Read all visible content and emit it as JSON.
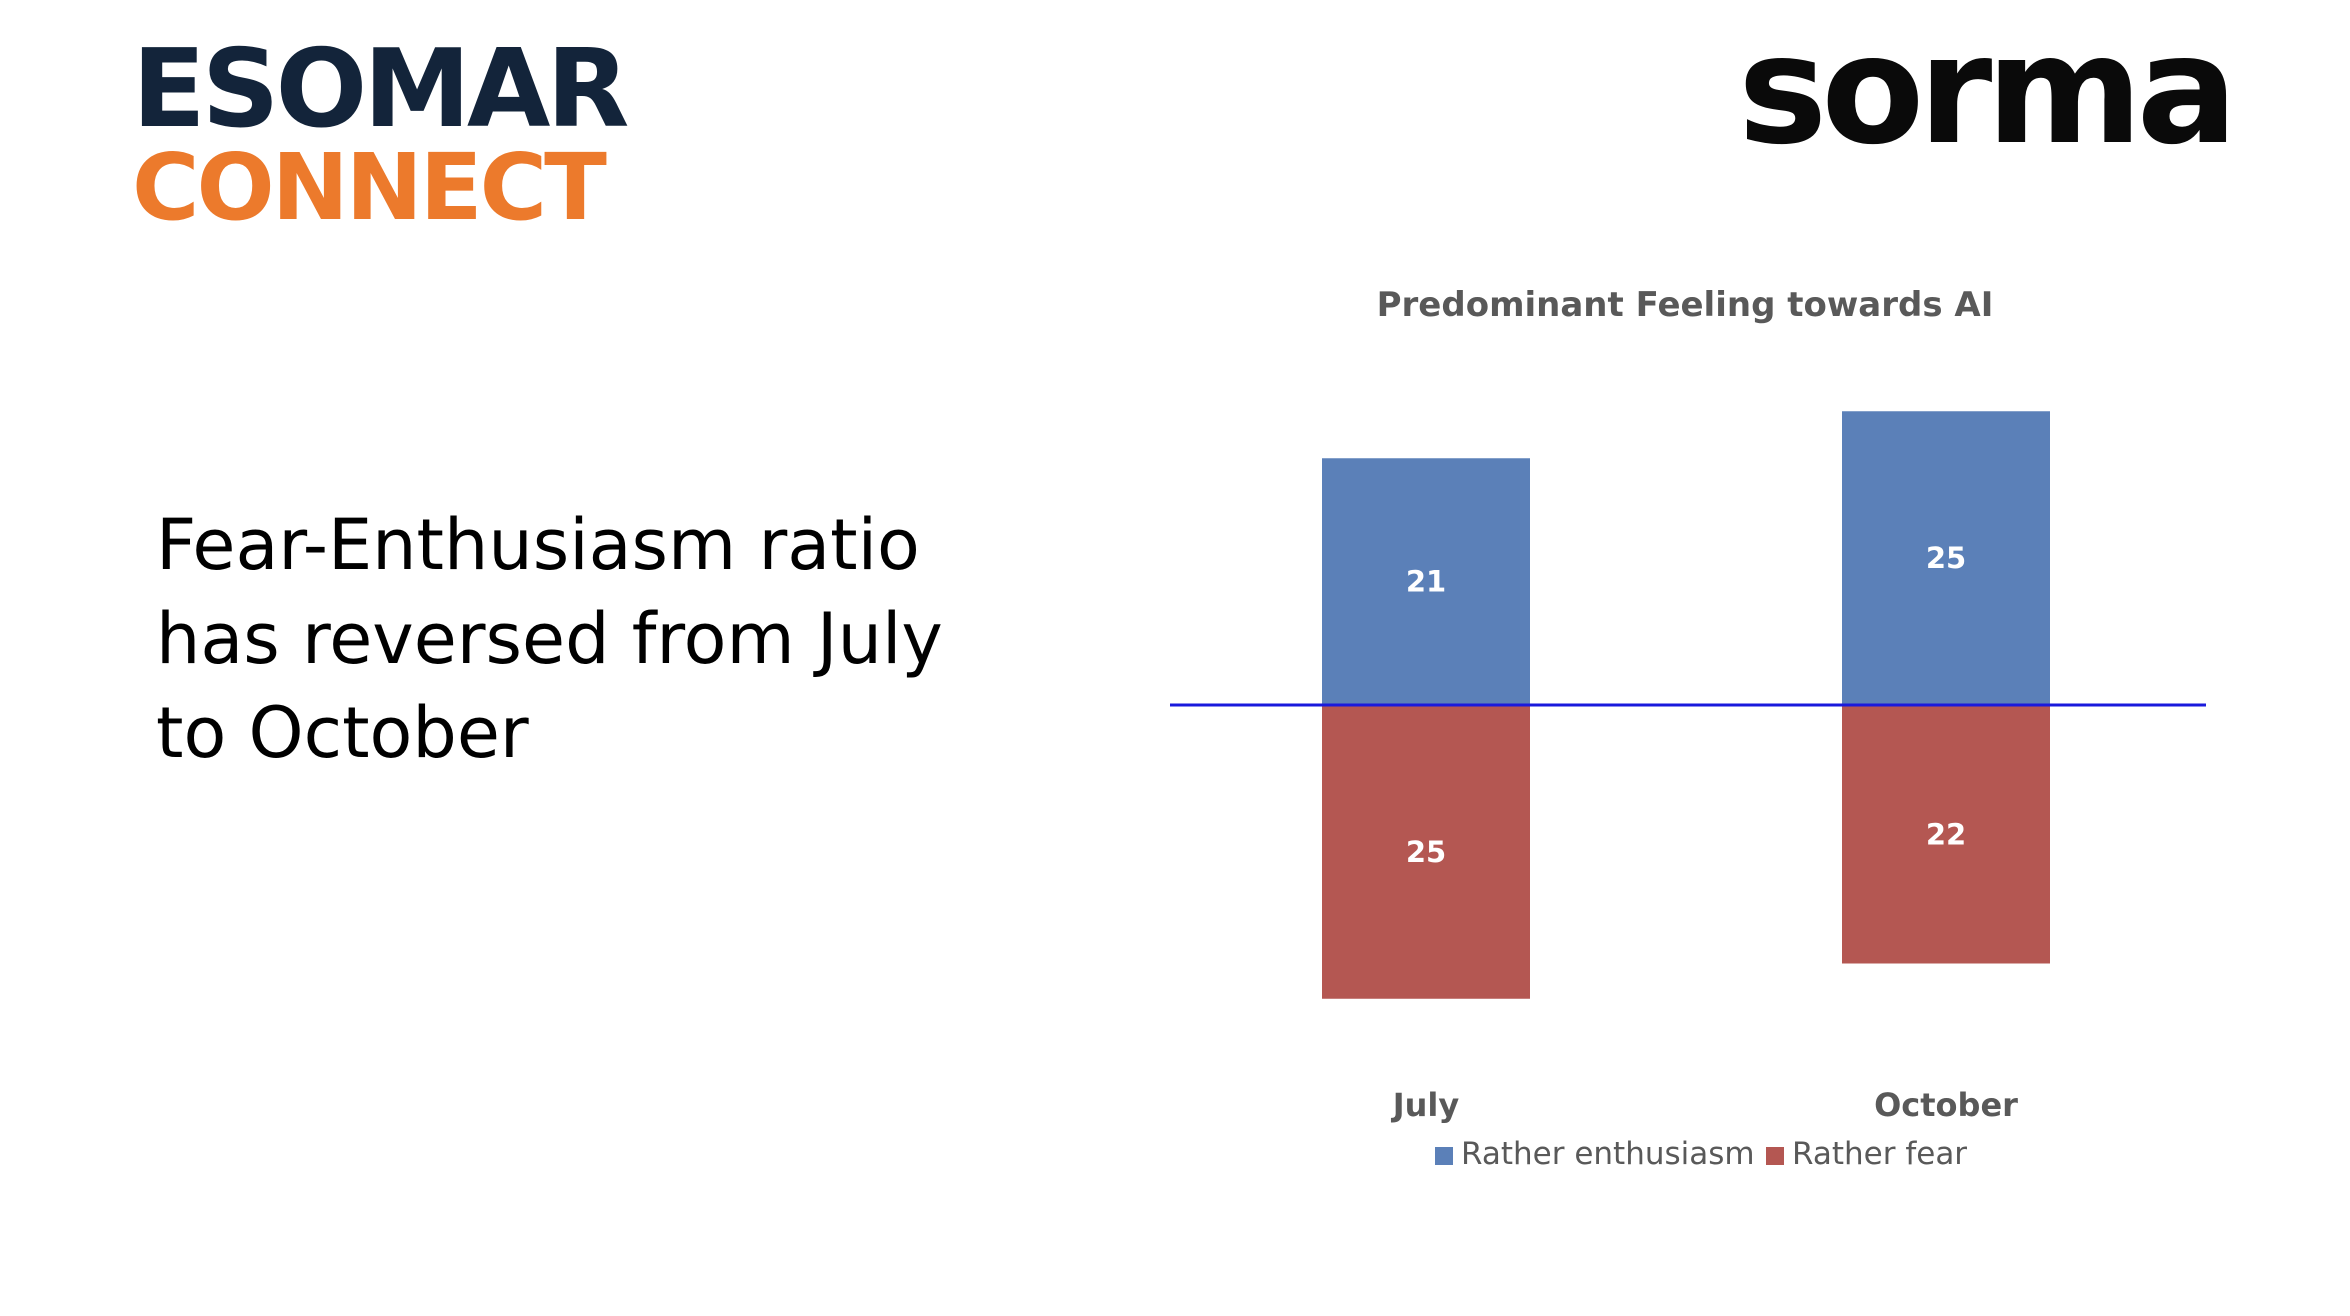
{
  "logos": {
    "esomar_line1": "ESOMAR",
    "esomar_line2": "CONNECT",
    "sorma": "sorma"
  },
  "headline": [
    "Fear-Enthusiasm ratio",
    "has reversed from July",
    "to October"
  ],
  "colors": {
    "enthusiasm": "#5b80b8",
    "fear": "#b45752",
    "baseline": "#1a1adc",
    "esomar_navy": "#13243a",
    "esomar_orange": "#ec7a2c"
  },
  "chart_data": {
    "type": "bar",
    "stacking": "diverging",
    "title": "Predominant Feeling towards AI",
    "categories": [
      "July",
      "October"
    ],
    "series": [
      {
        "name": "Rather enthusiasm",
        "direction": "up",
        "values": [
          21,
          25
        ]
      },
      {
        "name": "Rather fear",
        "direction": "down",
        "values": [
          25,
          22
        ]
      }
    ],
    "legend": "bottom",
    "grid": false
  }
}
